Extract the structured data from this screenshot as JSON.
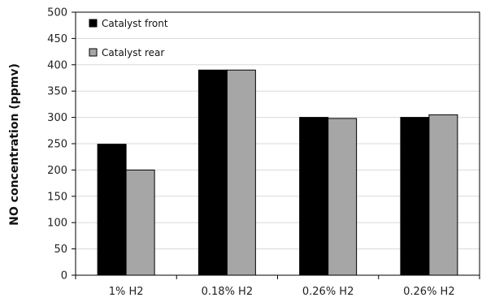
{
  "chart_data": {
    "type": "bar",
    "title": "",
    "xlabel": "",
    "ylabel": "NO concentration (ppmv)",
    "categories": [
      "1% H2",
      "0.18% H2",
      "0.26% H2",
      "0.26% H2"
    ],
    "series": [
      {
        "name": "Catalyst front",
        "values": [
          249,
          390,
          300,
          300
        ],
        "color": "#000000"
      },
      {
        "name": "Catalyst rear",
        "values": [
          200,
          390,
          298,
          305
        ],
        "color": "#a6a6a6"
      }
    ],
    "ylim": [
      0,
      500
    ],
    "yticks": [
      0,
      50,
      100,
      150,
      200,
      250,
      300,
      350,
      400,
      450,
      500
    ],
    "grid": true,
    "legend_position": "top-left"
  }
}
